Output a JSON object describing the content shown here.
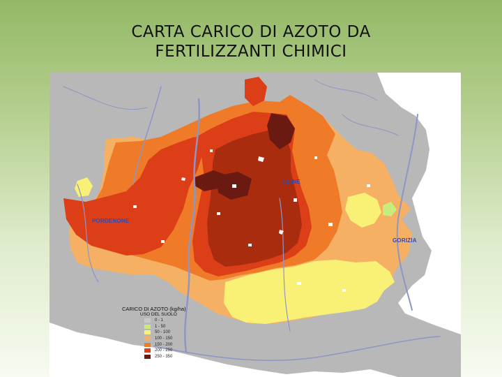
{
  "slide": {
    "title_line1": "CARTA CARICO DI AZOTO DA",
    "title_line2": "FERTILIZZANTI CHIMICI"
  },
  "map": {
    "cities": [
      {
        "name": "UDINE",
        "color": "#3a48a8"
      },
      {
        "name": "PORDENONE",
        "color": "#3a48a8"
      },
      {
        "name": "GORIZIA",
        "color": "#3a48a8"
      }
    ],
    "palette": {
      "background": "#ffffff",
      "non_agricultural": "#b8b8b8",
      "rivers": "#8d96c4",
      "class_1": "#c9c9c9",
      "class_2": "#c8ec7c",
      "class_3": "#f8f176",
      "class_4": "#f5b063",
      "class_5": "#ef7a28",
      "class_6": "#dc3e18",
      "class_7": "#a92c0f",
      "class_8": "#6a1a10"
    }
  },
  "legend": {
    "title": "CARICO DI AZOTO (kg/ha)",
    "subtitle": "USO DEL SUOLO",
    "items": [
      {
        "label": "0 - 1",
        "color": "#c9c9c9"
      },
      {
        "label": "1 - 50",
        "color": "#c8ec7c"
      },
      {
        "label": "50 - 100",
        "color": "#f8f176"
      },
      {
        "label": "100 - 150",
        "color": "#f5b063"
      },
      {
        "label": "150 - 200",
        "color": "#ef7a28"
      },
      {
        "label": "200 - 250",
        "color": "#dc3e18"
      },
      {
        "label": "250 - 350",
        "color": "#6a1a10"
      }
    ]
  }
}
